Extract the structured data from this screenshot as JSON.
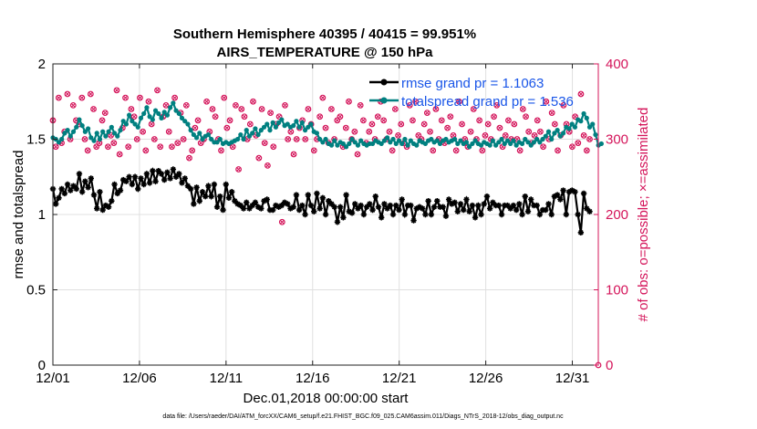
{
  "chart_data": {
    "type": "line",
    "title_line1": "Southern Hemisphere 40395 / 40415 = 99.951%",
    "title_line2": "AIRS_TEMPERATURE @ 150 hPa",
    "xlabel": "Dec.01,2018 00:00:00 start",
    "ylabel": "rmse and totalspread",
    "ylabel_right": "# of obs: o=possible; ×=assimilated",
    "footer": "data file: /Users/raeder/DAI/ATM_forcXX/CAM6_setup/f.e21.FHIST_BGC.f09_025.CAM6assim.011/Diags_NTrS_2018-12/obs_diag_output.nc",
    "xlim": [
      0,
      31.5
    ],
    "ylim": [
      0,
      2
    ],
    "ylim_right": [
      0,
      400
    ],
    "x_ticks": [
      0,
      5,
      10,
      15,
      20,
      25,
      30
    ],
    "x_tick_labels": [
      "12/01",
      "12/06",
      "12/11",
      "12/16",
      "12/21",
      "12/26",
      "12/31"
    ],
    "y_ticks": [
      0,
      0.5,
      1,
      1.5,
      2
    ],
    "y_tick_labels": [
      "0",
      "0.5",
      "1",
      "1.5",
      "2"
    ],
    "y_ticks_right": [
      0,
      100,
      200,
      300,
      400
    ],
    "y_tick_labels_right": [
      "0",
      "100",
      "200",
      "300",
      "400"
    ],
    "legend": [
      "rmse grand pr = 1.1063",
      "totalspread grand pr = 1.536"
    ],
    "colors": {
      "rmse": "#000000",
      "spread": "#008080",
      "obs": "#d4145a",
      "legend_text": "#1a56e8",
      "grid": "#e0e0e0"
    },
    "series": [
      {
        "name": "rmse",
        "values": [
          1.17,
          1.07,
          1.11,
          1.17,
          1.14,
          1.2,
          1.16,
          1.19,
          1.17,
          1.27,
          1.15,
          1.22,
          1.18,
          1.24,
          1.13,
          1.04,
          1.15,
          1.03,
          1.06,
          1.05,
          1.09,
          1.2,
          1.14,
          1.16,
          1.23,
          1.22,
          1.25,
          1.2,
          1.25,
          1.17,
          1.24,
          1.2,
          1.27,
          1.21,
          1.29,
          1.22,
          1.29,
          1.27,
          1.23,
          1.28,
          1.24,
          1.3,
          1.25,
          1.27,
          1.21,
          1.24,
          1.19,
          1.17,
          1.07,
          1.18,
          1.09,
          1.15,
          1.12,
          1.19,
          1.12,
          1.2,
          1.05,
          1.12,
          1.03,
          1.2,
          1.11,
          1.15,
          1.09,
          1.07,
          1.06,
          1.04,
          1.08,
          1.04,
          1.06,
          1.08,
          1.05,
          1.04,
          1.09,
          1.1,
          1.03,
          1.03,
          1.06,
          1.05,
          1.06,
          1.08,
          1.07,
          1.04,
          1.05,
          1.13,
          1.03,
          1.06,
          1.0,
          1.13,
          1.06,
          1.02,
          1.14,
          1.04,
          1.11,
          1.0,
          1.09,
          1.07,
          1.05,
          0.95,
          1.05,
          0.98,
          1.13,
          1.02,
          1.01,
          1.07,
          1.04,
          1.06,
          1.0,
          1.05,
          1.07,
          1.03,
          1.12,
          1.05,
          0.98,
          1.07,
          1.04,
          1.06,
          1.0,
          1.06,
          1.03,
          1.1,
          1.0,
          1.06,
          1.06,
          0.96,
          1.04,
          1.05,
          1.04,
          1.0,
          1.09,
          1.0,
          1.05,
          1.09,
          1.05,
          1.05,
          0.99,
          1.1,
          1.07,
          1.08,
          1.02,
          1.07,
          1.03,
          1.1,
          1.02,
          1.06,
          0.98,
          1.06,
          1.0,
          1.07,
          1.12,
          1.04,
          1.08,
          1.06,
          1.06,
          1.0,
          1.06,
          1.06,
          1.04,
          1.06,
          1.03,
          1.07,
          1.0,
          1.12,
          1.02,
          1.1,
          1.06,
          1.06,
          1.0,
          1.03,
          1.03,
          1.07,
          1.0,
          1.12,
          1.13,
          1.1,
          1.16,
          1.0,
          1.15,
          1.16,
          1.15,
          1.0,
          0.88,
          1.14,
          1.04,
          1.02
        ]
      },
      {
        "name": "totalspread",
        "values": [
          1.51,
          1.5,
          1.48,
          1.5,
          1.54,
          1.56,
          1.52,
          1.55,
          1.58,
          1.63,
          1.59,
          1.55,
          1.57,
          1.51,
          1.49,
          1.54,
          1.5,
          1.55,
          1.52,
          1.55,
          1.58,
          1.54,
          1.52,
          1.56,
          1.62,
          1.6,
          1.66,
          1.62,
          1.6,
          1.58,
          1.64,
          1.67,
          1.71,
          1.65,
          1.63,
          1.69,
          1.67,
          1.64,
          1.68,
          1.66,
          1.71,
          1.74,
          1.69,
          1.67,
          1.64,
          1.62,
          1.6,
          1.56,
          1.53,
          1.51,
          1.54,
          1.5,
          1.52,
          1.53,
          1.5,
          1.48,
          1.48,
          1.5,
          1.47,
          1.48,
          1.47,
          1.48,
          1.49,
          1.5,
          1.53,
          1.5,
          1.56,
          1.52,
          1.54,
          1.57,
          1.53,
          1.56,
          1.58,
          1.6,
          1.56,
          1.61,
          1.58,
          1.61,
          1.63,
          1.59,
          1.6,
          1.58,
          1.59,
          1.62,
          1.58,
          1.61,
          1.56,
          1.58,
          1.6,
          1.55,
          1.54,
          1.5,
          1.48,
          1.5,
          1.47,
          1.46,
          1.49,
          1.46,
          1.48,
          1.47,
          1.45,
          1.47,
          1.5,
          1.48,
          1.46,
          1.49,
          1.47,
          1.46,
          1.47,
          1.47,
          1.49,
          1.48,
          1.47,
          1.49,
          1.51,
          1.48,
          1.5,
          1.47,
          1.49,
          1.47,
          1.5,
          1.46,
          1.49,
          1.47,
          1.46,
          1.49,
          1.48,
          1.47,
          1.49,
          1.5,
          1.48,
          1.49,
          1.47,
          1.49,
          1.5,
          1.48,
          1.49,
          1.5,
          1.47,
          1.49,
          1.47,
          1.48,
          1.45,
          1.47,
          1.49,
          1.47,
          1.46,
          1.48,
          1.47,
          1.46,
          1.49,
          1.46,
          1.48,
          1.5,
          1.47,
          1.49,
          1.47,
          1.49,
          1.46,
          1.48,
          1.47,
          1.5,
          1.48,
          1.46,
          1.48,
          1.5,
          1.48,
          1.5,
          1.52,
          1.55,
          1.5,
          1.54,
          1.56,
          1.52,
          1.54,
          1.58,
          1.57,
          1.6,
          1.58,
          1.63,
          1.62,
          1.67,
          1.64,
          1.58,
          1.6,
          1.53,
          1.46,
          1.47
        ]
      },
      {
        "name": "obs_possible",
        "values": [
          325,
          290,
          355,
          295,
          310,
          360,
          300,
          345,
          325,
          320,
          355,
          300,
          285,
          360,
          340,
          290,
          295,
          325,
          335,
          290,
          305,
          295,
          365,
          280,
          315,
          355,
          290,
          340,
          330,
          300,
          355,
          310,
          285,
          350,
          320,
          300,
          365,
          290,
          330,
          345,
          310,
          290,
          355,
          295,
          335,
          300,
          345,
          275,
          285,
          315,
          325,
          295,
          300,
          350,
          310,
          340,
          330,
          300,
          285,
          355,
          315,
          325,
          290,
          345,
          260,
          340,
          330,
          300,
          320,
          350,
          305,
          275,
          340,
          295,
          265,
          335,
          290,
          320,
          330,
          190,
          345,
          300,
          310,
          280,
          300,
          315,
          325,
          300,
          340,
          320,
          285,
          300,
          330,
          355,
          315,
          295,
          340,
          300,
          325,
          330,
          290,
          315,
          350,
          300,
          310,
          280,
          345,
          325,
          295,
          310,
          320,
          300,
          330,
          350,
          325,
          300,
          310,
          285,
          340,
          305,
          320,
          295,
          290,
          345,
          325,
          350,
          305,
          300,
          320,
          335,
          310,
          285,
          340,
          300,
          325,
          295,
          315,
          330,
          305,
          285,
          350,
          320,
          300,
          290,
          310,
          340,
          300,
          325,
          285,
          305,
          320,
          300,
          330,
          345,
          315,
          290,
          305,
          325,
          300,
          320,
          300,
          285,
          340,
          330,
          310,
          295,
          305,
          325,
          310,
          290,
          350,
          300,
          335,
          320,
          285,
          305,
          345,
          320,
          310,
          290,
          330,
          295,
          360,
          305,
          285,
          300
        ]
      }
    ]
  }
}
